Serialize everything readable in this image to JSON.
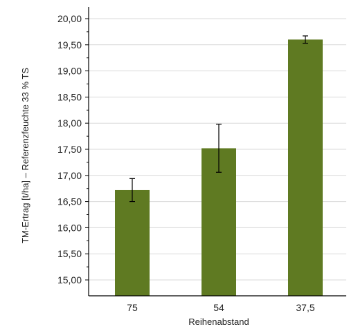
{
  "colors": {
    "bar": "#5f7a22",
    "grid": "#d9d9d9",
    "axis": "#000000",
    "error": "#000000"
  },
  "chart_data": {
    "type": "bar",
    "title": "",
    "xlabel": "Reihenabstand",
    "ylabel": "TM-Ertrag [t/ha] – Referenzfeuchte 33 % TS",
    "categories": [
      "75",
      "54",
      "37,5"
    ],
    "series": [
      {
        "values": [
          16.72,
          17.52,
          19.6
        ],
        "error": [
          0.22,
          0.46,
          0.07
        ]
      }
    ],
    "ylim": [
      15.0,
      20.0
    ],
    "yticks": [
      "15,00",
      "15,50",
      "16,00",
      "16,50",
      "17,00",
      "17,50",
      "18,00",
      "18,50",
      "19,00",
      "19,50",
      "20,00"
    ],
    "grid": true,
    "legend": "none"
  }
}
